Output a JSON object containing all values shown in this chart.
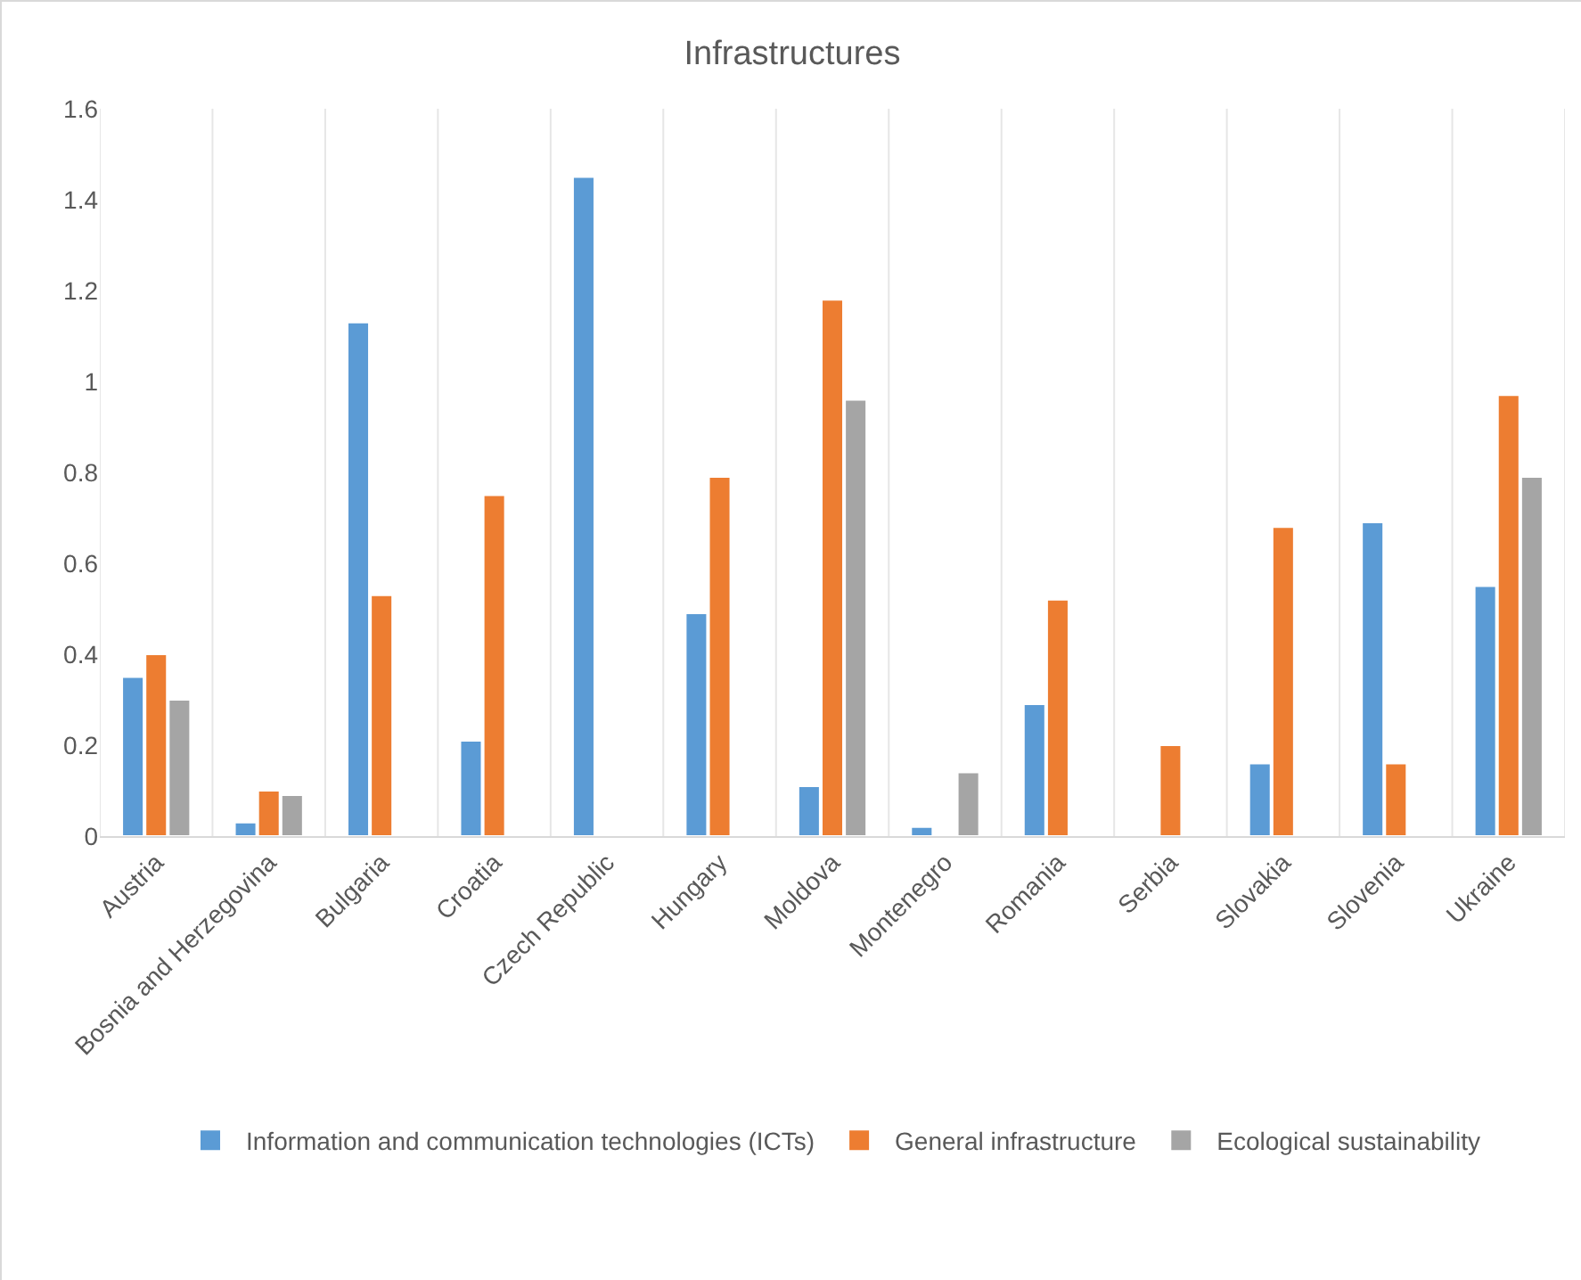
{
  "chart_data": {
    "type": "bar",
    "title": "Infrastructures",
    "categories": [
      "Austria",
      "Bosnia and Herzegovina",
      "Bulgaria",
      "Croatia",
      "Czech Republic",
      "Hungary",
      "Moldova",
      "Montenegro",
      "Romania",
      "Serbia",
      "Slovakia",
      "Slovenia",
      "Ukraine"
    ],
    "series": [
      {
        "name": "Information and communication technologies (ICTs)",
        "color": "#5b9bd5",
        "values": [
          0.35,
          0.03,
          1.13,
          0.21,
          1.45,
          0.49,
          0.11,
          0.02,
          0.29,
          null,
          0.16,
          0.69,
          0.55
        ]
      },
      {
        "name": "General infrastructure",
        "color": "#ed7d31",
        "values": [
          0.4,
          0.1,
          0.53,
          0.75,
          null,
          0.79,
          1.18,
          null,
          0.52,
          0.2,
          0.68,
          0.16,
          0.97
        ]
      },
      {
        "name": "Ecological sustainability",
        "color": "#a5a5a5",
        "values": [
          0.3,
          0.09,
          null,
          null,
          null,
          null,
          0.96,
          0.14,
          null,
          null,
          null,
          null,
          0.79
        ]
      }
    ],
    "ylim": [
      0,
      1.6
    ],
    "yticks": [
      0,
      0.2,
      0.4,
      0.6,
      0.8,
      1,
      1.2,
      1.4,
      1.6
    ],
    "grid": "x",
    "legend": "bottom"
  }
}
